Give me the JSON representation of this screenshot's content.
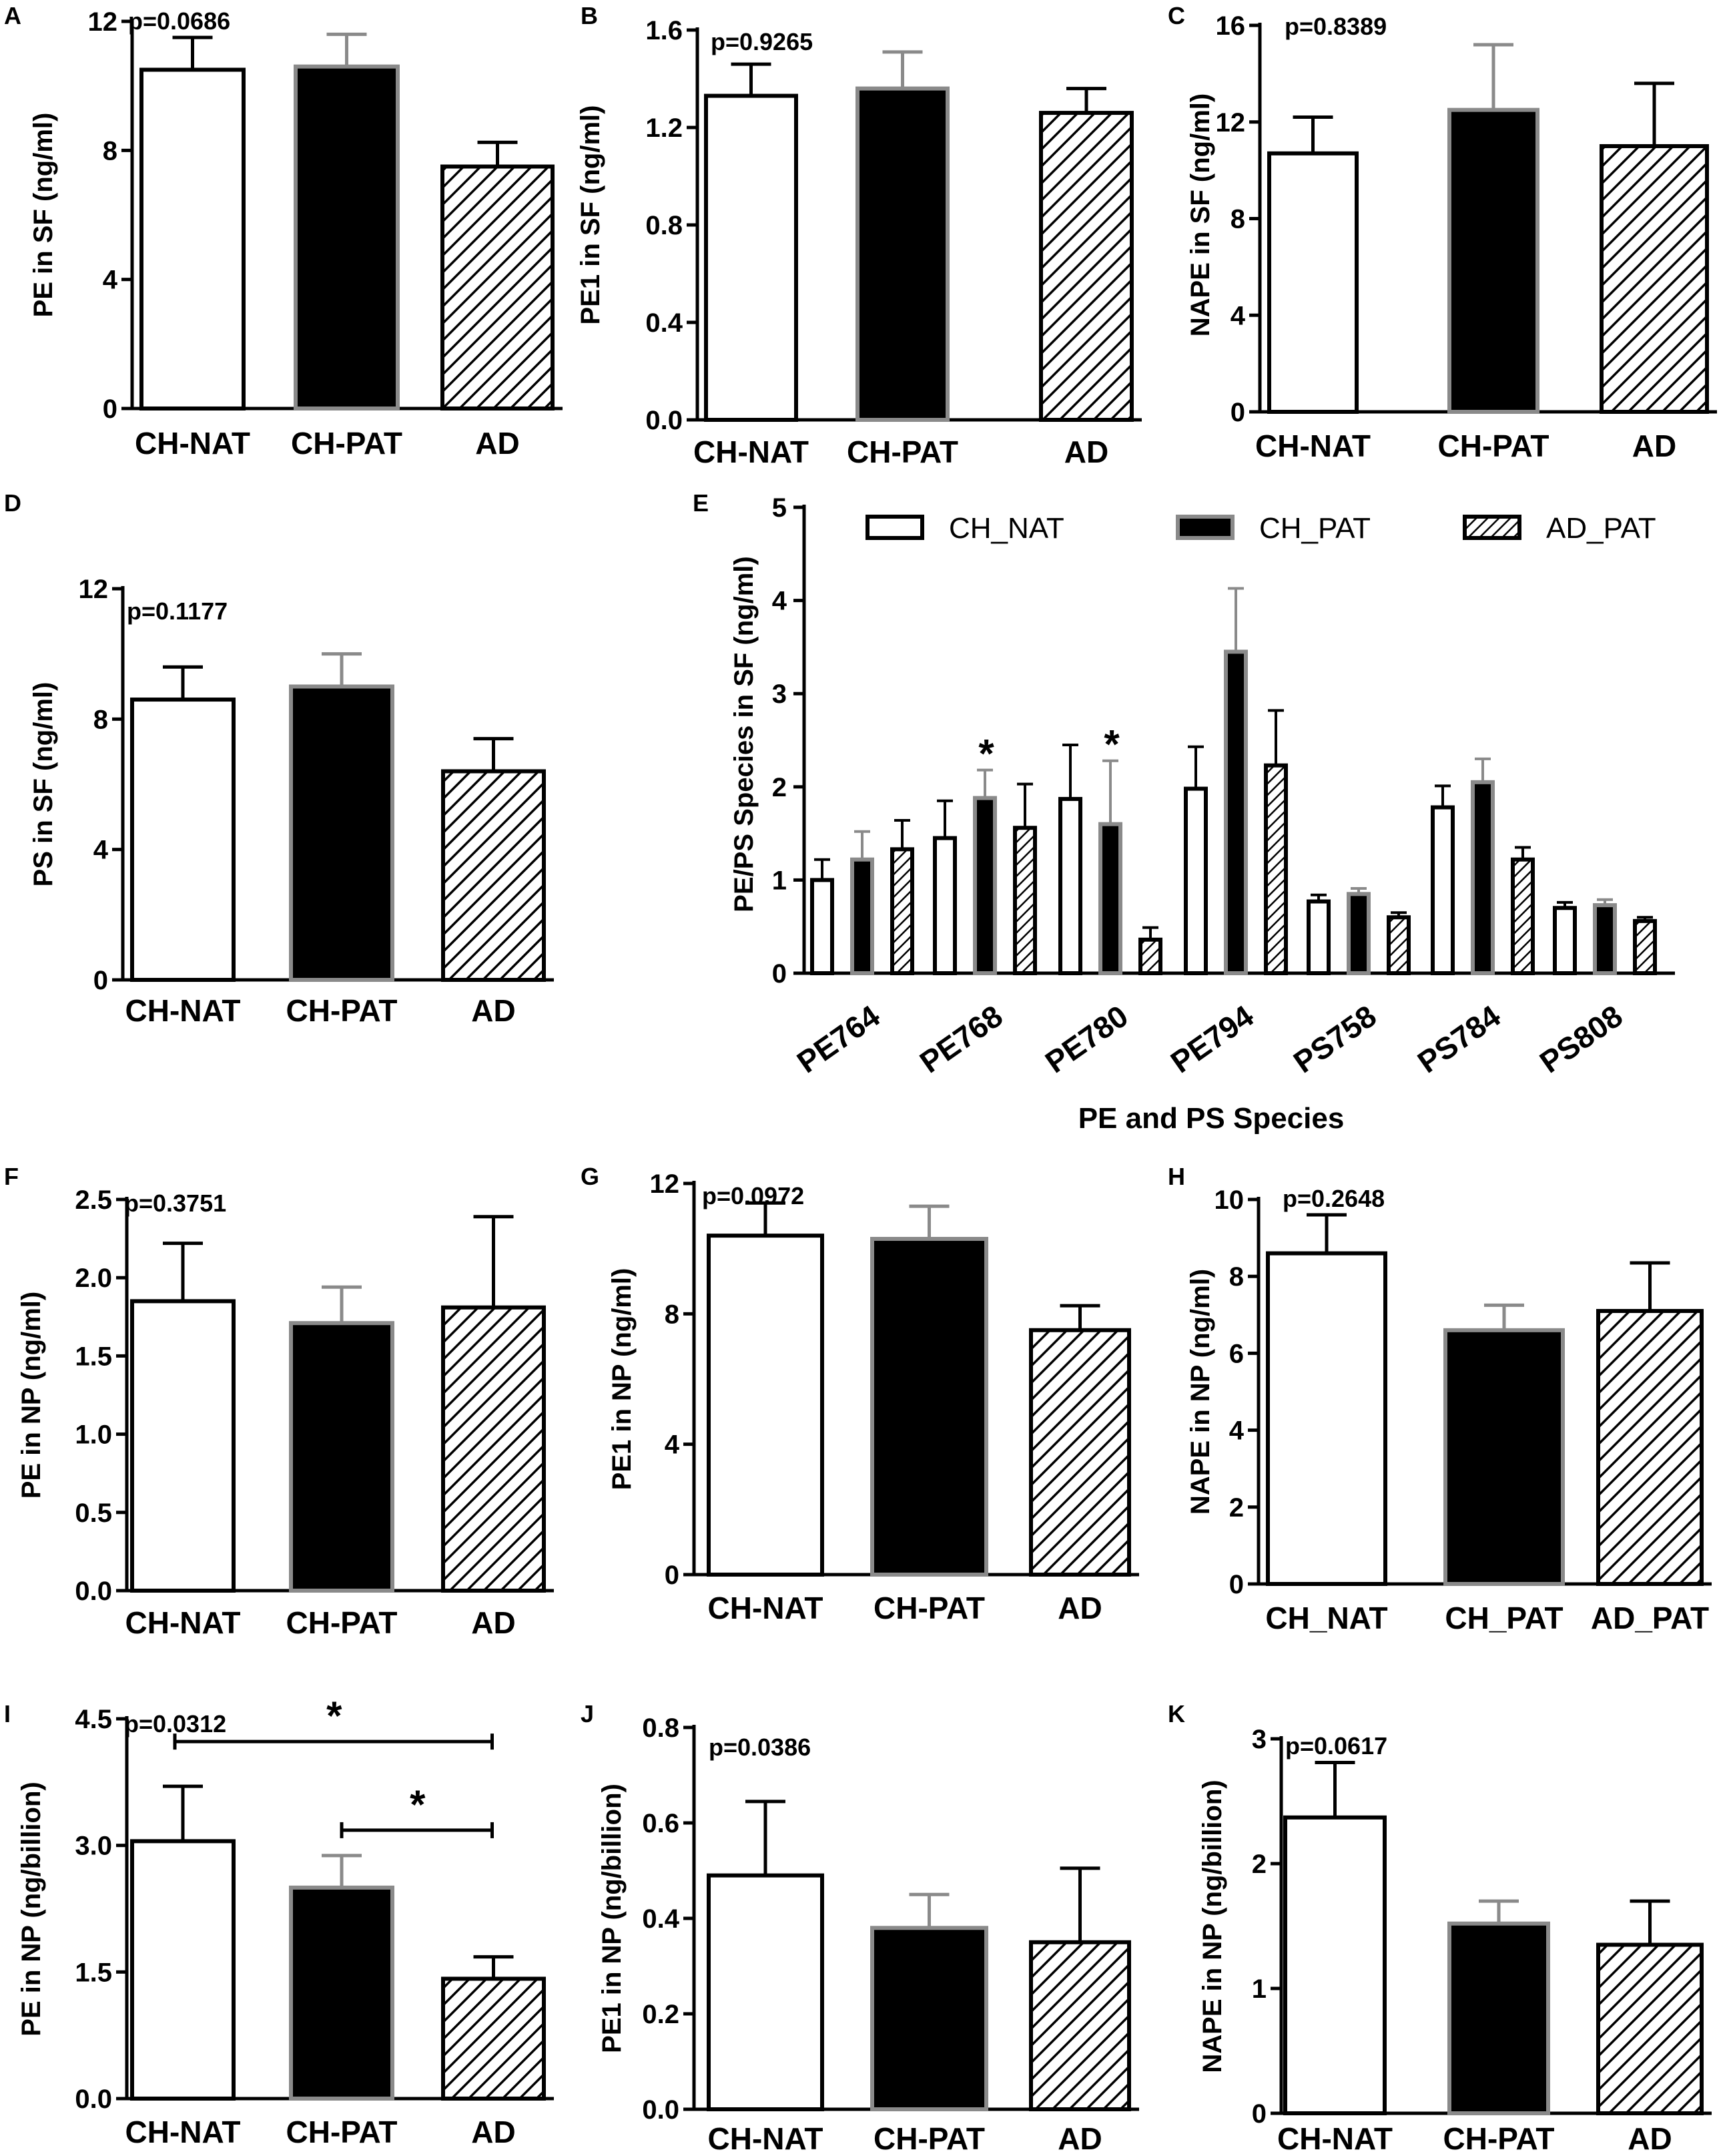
{
  "chart_data": [
    {
      "id": "A",
      "type": "bar",
      "categories": [
        "CH-NAT",
        "CH-PAT",
        "AD"
      ],
      "values": [
        10.5,
        10.6,
        7.5
      ],
      "errors": [
        1.0,
        1.0,
        0.75
      ],
      "ylabel": "PE in SF (ng/ml)",
      "ylim": [
        0,
        12
      ],
      "ticks": [
        0,
        4,
        8,
        12
      ],
      "tick_labels": [
        "0",
        "4",
        "8",
        "12"
      ],
      "p_value": "p=0.0686"
    },
    {
      "id": "B",
      "type": "bar",
      "categories": [
        "CH-NAT",
        "CH-PAT",
        "AD"
      ],
      "values": [
        1.33,
        1.36,
        1.26
      ],
      "errors": [
        0.13,
        0.15,
        0.1
      ],
      "ylabel": "PE1 in SF (ng/ml)",
      "ylim": [
        0,
        1.6
      ],
      "ticks": [
        0,
        0.4,
        0.8,
        1.2,
        1.6
      ],
      "tick_labels": [
        "0.0",
        "0.4",
        "0.8",
        "1.2",
        "1.6"
      ],
      "p_value": "p=0.9265"
    },
    {
      "id": "C",
      "type": "bar",
      "categories": [
        "CH-NAT",
        "CH-PAT",
        "AD"
      ],
      "values": [
        10.7,
        12.5,
        11.0
      ],
      "errors": [
        1.5,
        2.7,
        2.6
      ],
      "ylabel": "NAPE in SF (ng/ml)",
      "ylim": [
        0,
        16
      ],
      "ticks": [
        0,
        4,
        8,
        12,
        16
      ],
      "tick_labels": [
        "0",
        "4",
        "8",
        "12",
        "16"
      ],
      "p_value": "p=0.8389"
    },
    {
      "id": "D",
      "type": "bar",
      "categories": [
        "CH-NAT",
        "CH-PAT",
        "AD"
      ],
      "values": [
        8.6,
        9.0,
        6.4
      ],
      "errors": [
        1.0,
        1.0,
        1.0
      ],
      "ylabel": "PS in SF (ng/ml)",
      "ylim": [
        0,
        12
      ],
      "ticks": [
        0,
        4,
        8,
        12
      ],
      "tick_labels": [
        "0",
        "4",
        "8",
        "12"
      ],
      "p_value": "p=0.1177"
    },
    {
      "id": "E",
      "type": "grouped-bar",
      "categories": [
        "PE764",
        "PE768",
        "PE780",
        "PE794",
        "PS758",
        "PS784",
        "PS808"
      ],
      "series": [
        {
          "name": "CH_NAT",
          "values": [
            1.0,
            1.45,
            1.87,
            1.98,
            0.77,
            1.78,
            0.7
          ],
          "errors": [
            0.22,
            0.4,
            0.58,
            0.45,
            0.07,
            0.23,
            0.06
          ]
        },
        {
          "name": "CH_PAT",
          "values": [
            1.22,
            1.88,
            1.6,
            3.45,
            0.85,
            2.05,
            0.73
          ],
          "errors": [
            0.3,
            0.3,
            0.68,
            0.68,
            0.06,
            0.25,
            0.06
          ]
        },
        {
          "name": "AD_PAT",
          "values": [
            1.33,
            1.56,
            0.36,
            2.23,
            0.6,
            1.22,
            0.56
          ],
          "errors": [
            0.31,
            0.47,
            0.13,
            0.59,
            0.05,
            0.13,
            0.04
          ]
        }
      ],
      "significance": [
        {
          "category": "PE768",
          "series": "CH_PAT",
          "mark": "*"
        },
        {
          "category": "PE780",
          "series": "CH_PAT",
          "mark": "*"
        }
      ],
      "ylabel": "PE/PS Species in SF (ng/ml)",
      "xlabel": "PE and PS Species",
      "ylim": [
        0,
        5
      ],
      "ticks": [
        0,
        1,
        2,
        3,
        4,
        5
      ],
      "tick_labels": [
        "0",
        "1",
        "2",
        "3",
        "4",
        "5"
      ],
      "legend": [
        "CH_NAT",
        "CH_PAT",
        "AD_PAT"
      ]
    },
    {
      "id": "F",
      "type": "bar",
      "categories": [
        "CH-NAT",
        "CH-PAT",
        "AD"
      ],
      "values": [
        1.85,
        1.71,
        1.81
      ],
      "errors": [
        0.37,
        0.23,
        0.58
      ],
      "ylabel": "PE in NP (ng/ml)",
      "ylim": [
        0,
        2.5
      ],
      "ticks": [
        0,
        0.5,
        1.0,
        1.5,
        2.0,
        2.5
      ],
      "tick_labels": [
        "0.0",
        "0.5",
        "1.0",
        "1.5",
        "2.0",
        "2.5"
      ],
      "p_value": "p=0.3751"
    },
    {
      "id": "G",
      "type": "bar",
      "categories": [
        "CH-NAT",
        "CH-PAT",
        "AD"
      ],
      "values": [
        10.4,
        10.3,
        7.5
      ],
      "errors": [
        1.0,
        1.0,
        0.75
      ],
      "ylabel": "PE1 in NP (ng/ml)",
      "ylim": [
        0,
        12
      ],
      "ticks": [
        0,
        4,
        8,
        12
      ],
      "tick_labels": [
        "0",
        "4",
        "8",
        "12"
      ],
      "p_value": "p=0.0972"
    },
    {
      "id": "H",
      "type": "bar",
      "categories": [
        "CH_NAT",
        "CH_PAT",
        "AD_PAT"
      ],
      "values": [
        8.6,
        6.6,
        7.1
      ],
      "errors": [
        1.0,
        0.65,
        1.25
      ],
      "ylabel": "NAPE in NP (ng/ml)",
      "ylim": [
        0,
        10
      ],
      "ticks": [
        0,
        2,
        4,
        6,
        8,
        10
      ],
      "tick_labels": [
        "0",
        "2",
        "4",
        "6",
        "8",
        "10"
      ],
      "p_value": "p=0.2648"
    },
    {
      "id": "I",
      "type": "bar",
      "categories": [
        "CH-NAT",
        "CH-PAT",
        "AD"
      ],
      "values": [
        3.05,
        2.5,
        1.42
      ],
      "errors": [
        0.65,
        0.38,
        0.26
      ],
      "ylabel": "PE in NP (ng/billion)",
      "ylim": [
        0,
        4.5
      ],
      "ticks": [
        0,
        1.5,
        3.0,
        4.5
      ],
      "tick_labels": [
        "0.0",
        "1.5",
        "3.0",
        "4.5"
      ],
      "p_value": "p=0.0312",
      "brackets": [
        {
          "from": "CH-NAT",
          "to": "AD",
          "level": 4.23,
          "mark": "*"
        },
        {
          "from": "CH-PAT",
          "to": "AD",
          "level": 3.18,
          "mark": "*"
        }
      ]
    },
    {
      "id": "J",
      "type": "bar",
      "categories": [
        "CH-NAT",
        "CH-PAT",
        "AD"
      ],
      "values": [
        0.49,
        0.38,
        0.35
      ],
      "errors": [
        0.155,
        0.07,
        0.155
      ],
      "ylabel": "PE1 in NP (ng/billion)",
      "ylim": [
        0,
        0.8
      ],
      "ticks": [
        0,
        0.2,
        0.4,
        0.6,
        0.8
      ],
      "tick_labels": [
        "0.0",
        "0.2",
        "0.4",
        "0.6",
        "0.8"
      ],
      "p_value": "p=0.0386"
    },
    {
      "id": "K",
      "type": "bar",
      "categories": [
        "CH-NAT",
        "CH-PAT",
        "AD"
      ],
      "values": [
        2.37,
        1.52,
        1.35
      ],
      "errors": [
        0.44,
        0.18,
        0.35
      ],
      "ylabel": "NAPE in NP (ng/billion)",
      "ylim": [
        0,
        3
      ],
      "ticks": [
        0,
        1,
        2,
        3
      ],
      "tick_labels": [
        "0",
        "1",
        "2",
        "3"
      ],
      "p_value": "p=0.0617"
    }
  ]
}
